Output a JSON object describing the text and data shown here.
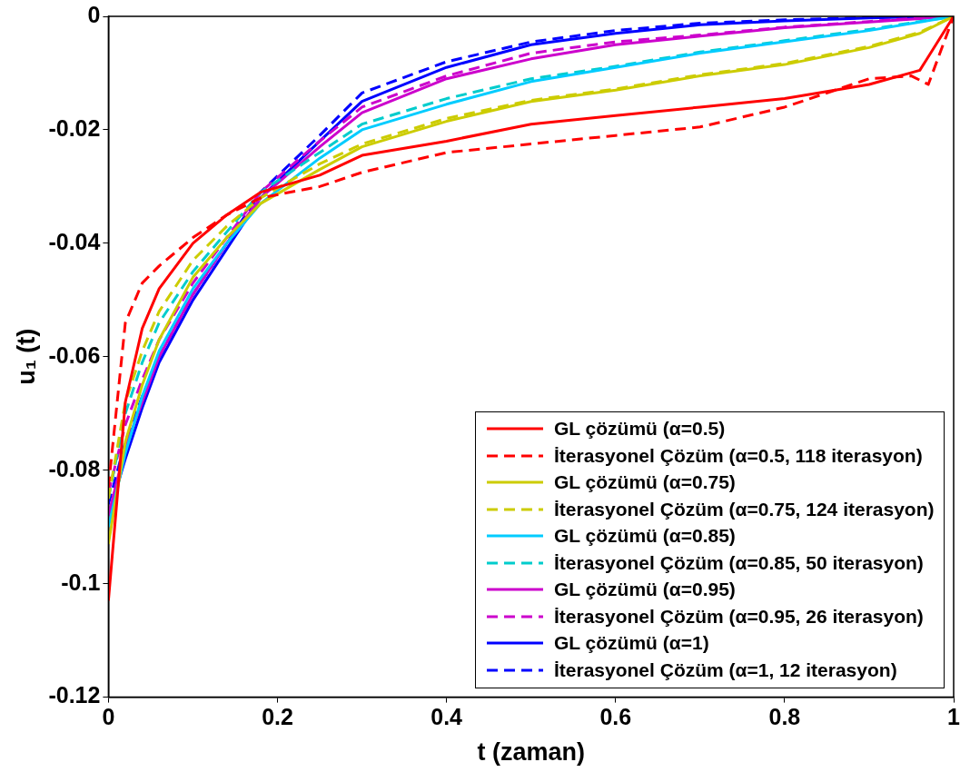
{
  "chart_data": {
    "type": "line",
    "xlabel": "t (zaman)",
    "ylabel": "u₁ (t)",
    "x": [
      0,
      0.02,
      0.04,
      0.06,
      0.1,
      0.14,
      0.18,
      0.25,
      0.3,
      0.4,
      0.5,
      0.6,
      0.7,
      0.8,
      0.9,
      0.96,
      1
    ],
    "xlim": [
      0,
      1
    ],
    "xticks": [
      0,
      0.2,
      0.4,
      0.6,
      0.8,
      1
    ],
    "ylim": [
      -0.12,
      0
    ],
    "yticks": [
      -0.12,
      -0.1,
      -0.08,
      -0.06,
      -0.04,
      -0.02,
      0
    ],
    "grid": false,
    "legend": "bottom right",
    "marker": "none",
    "series": [
      {
        "name": "GL çözümü (α=0.5)",
        "color": "#ff0000",
        "line_style": "solid",
        "values": [
          -0.103,
          -0.068,
          -0.055,
          -0.048,
          -0.04,
          -0.035,
          -0.031,
          -0.028,
          -0.0245,
          -0.022,
          -0.019,
          -0.0175,
          -0.016,
          -0.0145,
          -0.012,
          -0.0095,
          0
        ]
      },
      {
        "name": "İterasyonel Çözüm (α=0.5, 118 iterasyon)",
        "color": "#ff0000",
        "line_style": "dashed",
        "x": [
          0,
          0.02,
          0.04,
          0.06,
          0.1,
          0.14,
          0.18,
          0.25,
          0.3,
          0.4,
          0.5,
          0.6,
          0.7,
          0.8,
          0.9,
          0.95,
          0.97,
          1
        ],
        "values": [
          -0.083,
          -0.054,
          -0.047,
          -0.044,
          -0.039,
          -0.035,
          -0.032,
          -0.03,
          -0.0275,
          -0.024,
          -0.0225,
          -0.021,
          -0.0195,
          -0.016,
          -0.011,
          -0.0105,
          -0.012,
          0
        ]
      },
      {
        "name": "GL çözümü (α=0.75)",
        "color": "#cccc00",
        "line_style": "solid",
        "values": [
          -0.093,
          -0.075,
          -0.065,
          -0.057,
          -0.046,
          -0.039,
          -0.033,
          -0.027,
          -0.023,
          -0.0185,
          -0.015,
          -0.013,
          -0.0105,
          -0.0085,
          -0.0055,
          -0.003,
          0
        ]
      },
      {
        "name": "İterasyonel Çözüm (α=0.75, 124 iterasyon)",
        "color": "#cccc00",
        "line_style": "dashed",
        "values": [
          -0.085,
          -0.068,
          -0.059,
          -0.052,
          -0.043,
          -0.037,
          -0.032,
          -0.026,
          -0.0225,
          -0.018,
          -0.0148,
          -0.0128,
          -0.0103,
          -0.0083,
          -0.0053,
          -0.0028,
          0
        ]
      },
      {
        "name": "GL çözümü (α=0.85)",
        "color": "#00ccff",
        "line_style": "solid",
        "values": [
          -0.09,
          -0.077,
          -0.067,
          -0.059,
          -0.048,
          -0.04,
          -0.033,
          -0.025,
          -0.02,
          -0.0155,
          -0.0115,
          -0.009,
          -0.0065,
          -0.0045,
          -0.0025,
          -0.001,
          0
        ]
      },
      {
        "name": "İterasyonel Çözüm (α=0.85, 50 iterasyon)",
        "color": "#00cccc",
        "line_style": "dashed",
        "values": [
          -0.085,
          -0.07,
          -0.061,
          -0.054,
          -0.045,
          -0.038,
          -0.031,
          -0.024,
          -0.019,
          -0.0145,
          -0.011,
          -0.0088,
          -0.0063,
          -0.0043,
          -0.0023,
          -0.0009,
          0
        ]
      },
      {
        "name": "GL çözümü (α=0.95)",
        "color": "#cc00cc",
        "line_style": "solid",
        "values": [
          -0.088,
          -0.076,
          -0.068,
          -0.06,
          -0.049,
          -0.04,
          -0.032,
          -0.023,
          -0.017,
          -0.011,
          -0.0075,
          -0.005,
          -0.0035,
          -0.002,
          -0.001,
          -0.0004,
          0
        ]
      },
      {
        "name": "İterasyonel Çözüm (α=0.95, 26 iterasyon)",
        "color": "#cc00cc",
        "line_style": "dashed",
        "values": [
          -0.084,
          -0.072,
          -0.064,
          -0.057,
          -0.047,
          -0.039,
          -0.031,
          -0.022,
          -0.016,
          -0.0105,
          -0.0065,
          -0.0045,
          -0.0033,
          -0.0019,
          -0.0009,
          -0.0003,
          0
        ]
      },
      {
        "name": "GL çözümü (α=1)",
        "color": "#0000ff",
        "line_style": "solid",
        "values": [
          -0.088,
          -0.078,
          -0.069,
          -0.061,
          -0.05,
          -0.041,
          -0.032,
          -0.022,
          -0.015,
          -0.009,
          -0.005,
          -0.003,
          -0.0015,
          -0.0008,
          -0.0003,
          -0.0001,
          0
        ]
      },
      {
        "name": "İterasyonel Çözüm (α=1, 12 iterasyon)",
        "color": "#0000ff",
        "line_style": "dashed",
        "values": [
          -0.086,
          -0.075,
          -0.067,
          -0.06,
          -0.049,
          -0.04,
          -0.031,
          -0.021,
          -0.0135,
          -0.008,
          -0.0045,
          -0.0025,
          -0.0012,
          -0.0006,
          -0.0002,
          -0.0001,
          0
        ]
      }
    ]
  }
}
